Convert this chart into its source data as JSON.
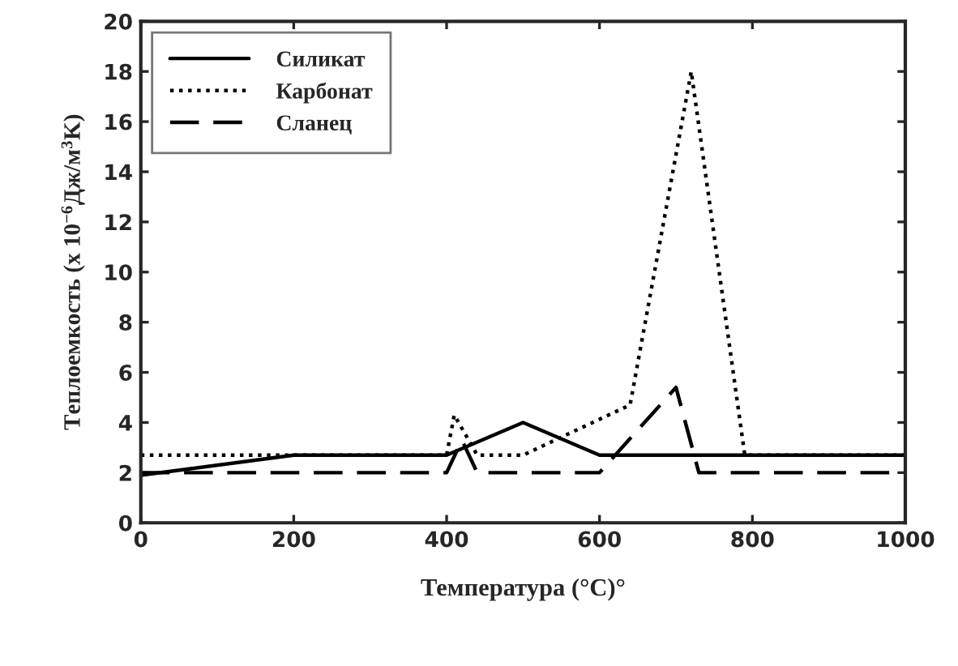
{
  "chart_data": {
    "type": "line",
    "xlabel": "Температура (°C)°",
    "ylabel": "Теплоемкость (х 10$^{−6}$Дж/м$^{3}$K)",
    "xlim": [
      0,
      1000
    ],
    "ylim": [
      0,
      20
    ],
    "xticks": [
      0,
      200,
      400,
      600,
      800,
      1000
    ],
    "yticks": [
      0,
      2,
      4,
      6,
      8,
      10,
      12,
      14,
      16,
      18,
      20
    ],
    "grid": false,
    "legend": "top left",
    "marker": "none",
    "series": [
      {
        "name": "Силикат",
        "color": "#000000",
        "line_style": "solid",
        "x": [
          0,
          200,
          400,
          500,
          600,
          1000
        ],
        "values": [
          1.9,
          2.7,
          2.7,
          4.0,
          2.7,
          2.7
        ]
      },
      {
        "name": "Карбонат",
        "color": "#000000",
        "line_style": "dotted",
        "x": [
          0,
          400,
          410,
          440,
          500,
          640,
          720,
          790,
          1000
        ],
        "values": [
          2.7,
          2.7,
          4.3,
          2.7,
          2.7,
          4.7,
          18,
          2.7,
          2.7
        ]
      },
      {
        "name": "Сланец",
        "color": "#000000",
        "line_style": "dashed",
        "x": [
          0,
          400,
          420,
          440,
          600,
          700,
          730,
          1000
        ],
        "values": [
          2.0,
          2.0,
          3.3,
          2.0,
          2.0,
          5.4,
          2.0,
          2.0
        ]
      }
    ]
  }
}
